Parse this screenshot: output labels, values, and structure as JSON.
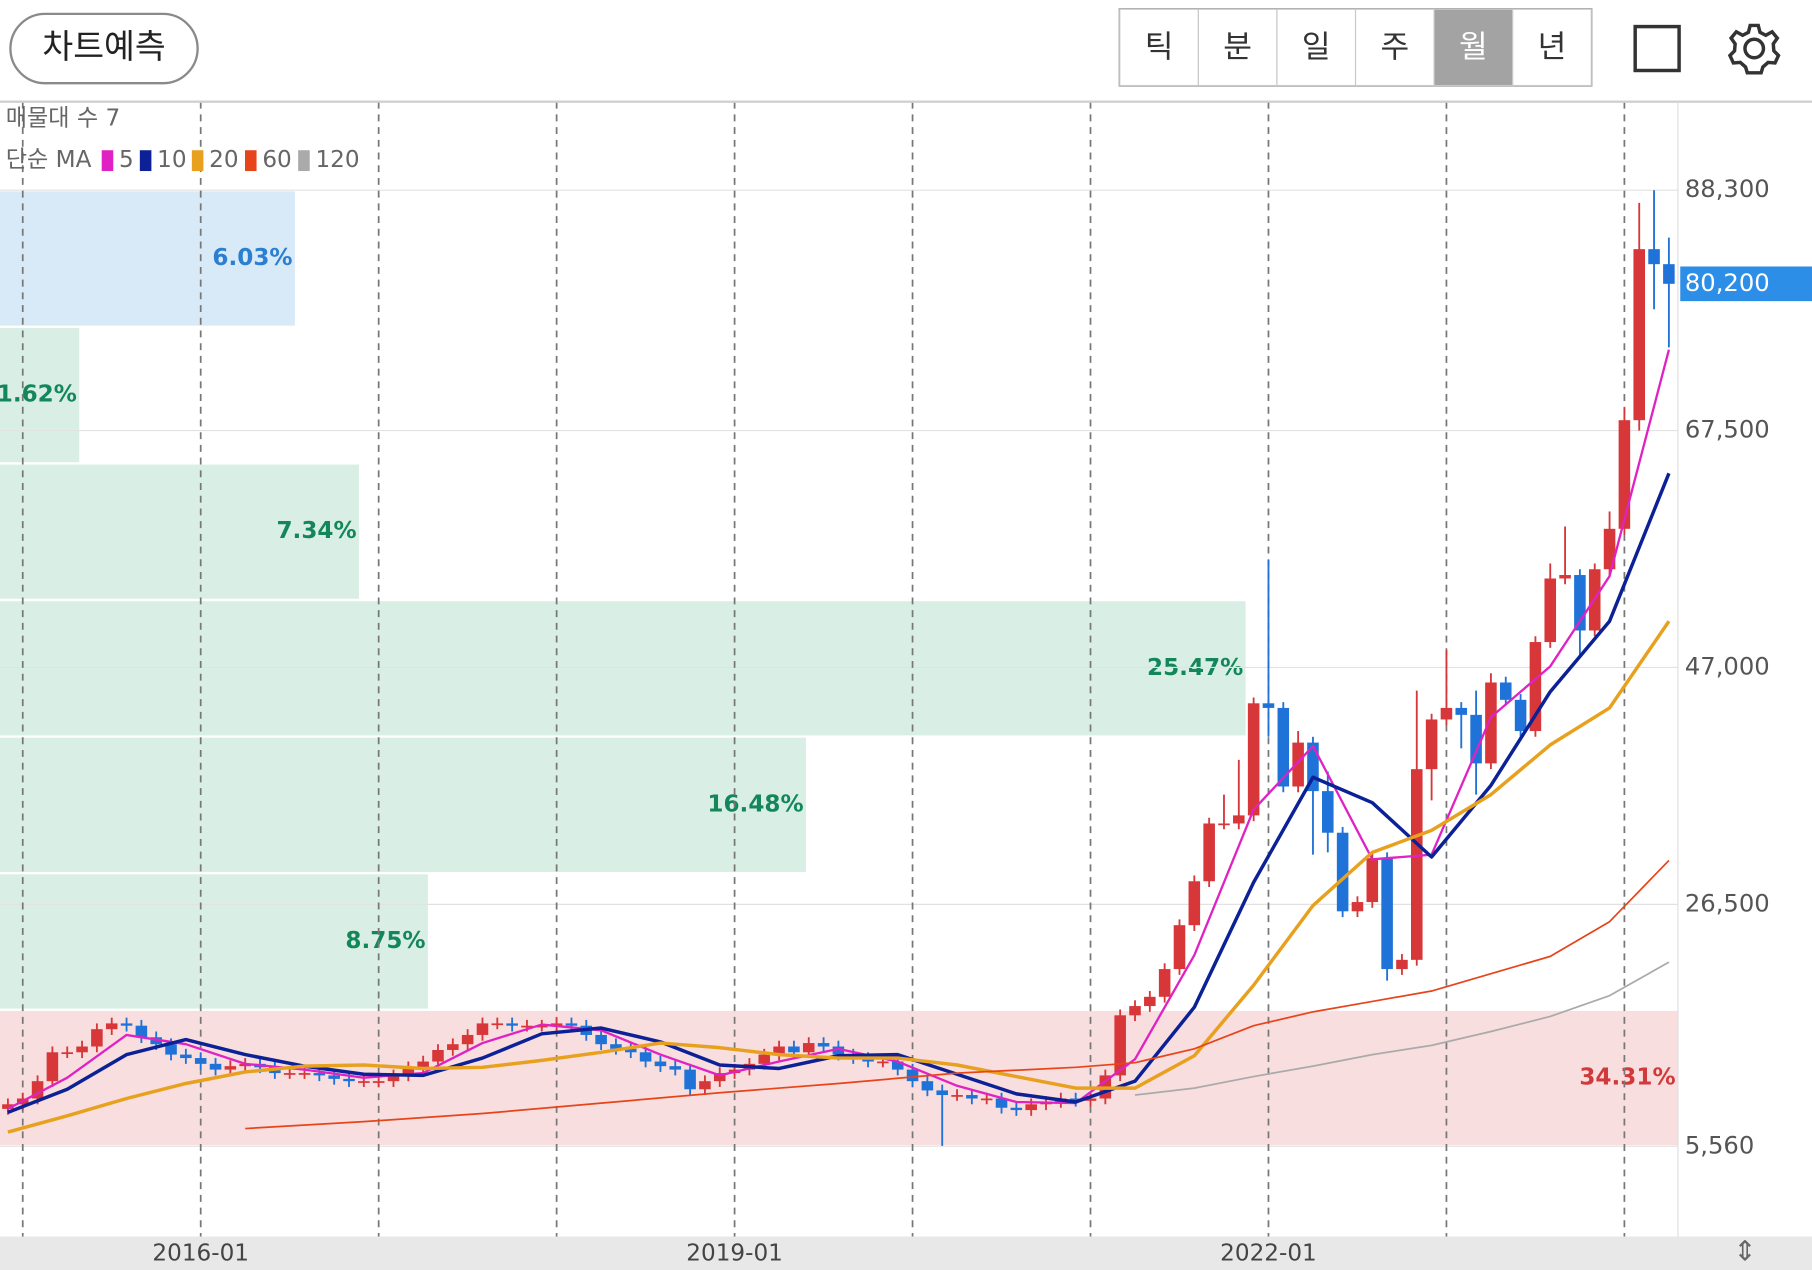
{
  "header": {
    "predict_button": "차트예측",
    "tabs": [
      "틱",
      "분",
      "일",
      "주",
      "월",
      "년"
    ],
    "selected_tab": "월"
  },
  "chart_data": {
    "type": "candlestick",
    "up_color": "#d8373a",
    "down_color": "#1f72d8",
    "xlim": [
      "2014-11",
      "2024-05"
    ],
    "xticks": [
      "2016-01",
      "2019-01",
      "2022-01"
    ],
    "xgrid": [
      "2015-01",
      "2016-01",
      "2017-01",
      "2018-01",
      "2019-01",
      "2020-01",
      "2021-01",
      "2022-01",
      "2023-01",
      "2024-01"
    ],
    "ylim": [
      0,
      96000
    ],
    "yticks": [
      {
        "value": 5560,
        "label": "5,560"
      },
      {
        "value": 26500,
        "label": "26,500"
      },
      {
        "value": 47000,
        "label": "47,000"
      },
      {
        "value": 67500,
        "label": "67,500"
      },
      {
        "value": 88300,
        "label": "88,300"
      }
    ],
    "grid": true,
    "current_price": {
      "value": 80200,
      "label": "80,200",
      "color": "#2d8ee8"
    },
    "x": [
      "2014-12",
      "2015-01",
      "2015-02",
      "2015-03",
      "2015-04",
      "2015-05",
      "2015-06",
      "2015-07",
      "2015-08",
      "2015-09",
      "2015-10",
      "2015-11",
      "2015-12",
      "2016-01",
      "2016-02",
      "2016-03",
      "2016-04",
      "2016-05",
      "2016-06",
      "2016-07",
      "2016-08",
      "2016-09",
      "2016-10",
      "2016-11",
      "2016-12",
      "2017-01",
      "2017-02",
      "2017-03",
      "2017-04",
      "2017-05",
      "2017-06",
      "2017-07",
      "2017-08",
      "2017-09",
      "2017-10",
      "2017-11",
      "2017-12",
      "2018-01",
      "2018-02",
      "2018-03",
      "2018-04",
      "2018-05",
      "2018-06",
      "2018-07",
      "2018-08",
      "2018-09",
      "2018-10",
      "2018-11",
      "2018-12",
      "2019-01",
      "2019-02",
      "2019-03",
      "2019-04",
      "2019-05",
      "2019-06",
      "2019-07",
      "2019-08",
      "2019-09",
      "2019-10",
      "2019-11",
      "2019-12",
      "2020-01",
      "2020-02",
      "2020-03",
      "2020-04",
      "2020-05",
      "2020-06",
      "2020-07",
      "2020-08",
      "2020-09",
      "2020-10",
      "2020-11",
      "2020-12",
      "2021-01",
      "2021-02",
      "2021-03",
      "2021-04",
      "2021-05",
      "2021-06",
      "2021-07",
      "2021-08",
      "2021-09",
      "2021-10",
      "2021-11",
      "2021-12",
      "2022-01",
      "2022-02",
      "2022-03",
      "2022-04",
      "2022-05",
      "2022-06",
      "2022-07",
      "2022-08",
      "2022-09",
      "2022-10",
      "2022-11",
      "2022-12",
      "2023-01",
      "2023-02",
      "2023-03",
      "2023-04",
      "2023-05",
      "2023-06",
      "2023-07",
      "2023-08",
      "2023-09",
      "2023-10",
      "2023-11",
      "2023-12",
      "2024-01",
      "2024-02",
      "2024-03",
      "2024-04"
    ],
    "open": [
      8800,
      9200,
      9700,
      11200,
      13700,
      13700,
      14200,
      15700,
      16200,
      16000,
      15000,
      14400,
      13500,
      13200,
      12700,
      12200,
      12500,
      12700,
      12400,
      11900,
      11900,
      11900,
      11700,
      11400,
      11200,
      11200,
      11200,
      11700,
      12400,
      12900,
      13900,
      14400,
      15200,
      16200,
      16200,
      16000,
      16000,
      16000,
      16200,
      16000,
      15200,
      14400,
      14000,
      13700,
      12900,
      12500,
      12200,
      10500,
      11200,
      11900,
      12200,
      12700,
      13500,
      14200,
      13700,
      14500,
      14200,
      13500,
      13200,
      12900,
      12900,
      12200,
      11200,
      10400,
      10000,
      10000,
      9700,
      9700,
      8900,
      8700,
      9200,
      9400,
      9700,
      9500,
      9700,
      11700,
      16900,
      17700,
      18500,
      20900,
      24700,
      28500,
      33500,
      33500,
      34200,
      43900,
      43500,
      36700,
      40500,
      36300,
      32700,
      25900,
      26700,
      30500,
      20900,
      21700,
      38200,
      42500,
      43500,
      42900,
      38700,
      45700,
      44200,
      41500,
      49200,
      54700,
      55000,
      50200,
      55500,
      59000,
      68400,
      83200,
      81900
    ],
    "high": [
      9700,
      10200,
      11700,
      14200,
      14200,
      14700,
      16200,
      16700,
      16700,
      16500,
      15500,
      14900,
      14000,
      13700,
      13200,
      13000,
      13200,
      13200,
      12900,
      12400,
      12400,
      12400,
      12200,
      11900,
      11700,
      11700,
      12200,
      12900,
      13400,
      14400,
      14900,
      15700,
      16700,
      16700,
      16700,
      16500,
      16500,
      16700,
      16700,
      16500,
      15700,
      14900,
      14500,
      14200,
      13400,
      13000,
      12700,
      11700,
      12400,
      12700,
      13200,
      14000,
      14700,
      14700,
      15000,
      15000,
      14700,
      14000,
      13700,
      13400,
      13400,
      12700,
      11700,
      10900,
      10500,
      10500,
      10200,
      10200,
      9400,
      9700,
      9900,
      10200,
      10200,
      10200,
      12200,
      17400,
      18200,
      19000,
      21400,
      25200,
      29000,
      34000,
      36000,
      39000,
      44400,
      56300,
      44000,
      41500,
      41000,
      38000,
      33200,
      27200,
      31000,
      31000,
      22200,
      45000,
      43000,
      48500,
      44000,
      45000,
      46500,
      46200,
      44700,
      49700,
      56000,
      59200,
      55500,
      56000,
      60500,
      69500,
      87200,
      88300,
      84200
    ],
    "low": [
      8300,
      8700,
      9200,
      10700,
      13200,
      13200,
      13700,
      15200,
      15500,
      14500,
      13900,
      13000,
      12700,
      12200,
      11700,
      11700,
      12000,
      11900,
      11400,
      11400,
      11400,
      11200,
      10900,
      10700,
      10700,
      10700,
      10700,
      11200,
      11900,
      12400,
      13400,
      13900,
      14700,
      15700,
      15500,
      15500,
      15500,
      15500,
      15500,
      14700,
      13900,
      13500,
      13200,
      12400,
      12000,
      11700,
      10000,
      10000,
      10700,
      11400,
      11700,
      12200,
      13000,
      13200,
      13200,
      13700,
      13000,
      12700,
      12400,
      12400,
      11700,
      10700,
      9900,
      5600,
      9500,
      9200,
      9200,
      8400,
      8200,
      8200,
      8700,
      8900,
      9000,
      9000,
      9200,
      11200,
      16400,
      17200,
      18000,
      20400,
      24200,
      28000,
      33000,
      33000,
      33700,
      41000,
      36200,
      36200,
      30800,
      31000,
      25400,
      25400,
      26200,
      19900,
      20400,
      21200,
      35500,
      42000,
      40000,
      36000,
      38200,
      43700,
      41000,
      41000,
      48700,
      54200,
      48000,
      49700,
      55000,
      58500,
      67500,
      78000,
      74700
    ],
    "close": [
      9200,
      9700,
      11200,
      13700,
      13700,
      14200,
      15700,
      16200,
      16000,
      15000,
      14400,
      13500,
      13200,
      12700,
      12200,
      12500,
      12700,
      12400,
      11900,
      11900,
      11900,
      11700,
      11400,
      11200,
      11200,
      11200,
      11700,
      12400,
      12900,
      13900,
      14400,
      15200,
      16200,
      16200,
      16000,
      16000,
      16000,
      16200,
      16000,
      15200,
      14400,
      14000,
      13700,
      12900,
      12500,
      12200,
      10500,
      11200,
      11900,
      12200,
      12700,
      13500,
      14200,
      13700,
      14500,
      14200,
      13500,
      13200,
      12900,
      12900,
      12200,
      11200,
      10400,
      10000,
      10000,
      9700,
      9700,
      8900,
      8700,
      9200,
      9400,
      9700,
      9500,
      9700,
      11700,
      16900,
      17700,
      18500,
      20900,
      24700,
      28500,
      33500,
      33500,
      34200,
      43900,
      43500,
      36700,
      40500,
      36300,
      32700,
      25900,
      26700,
      30500,
      20900,
      21700,
      38200,
      42500,
      43500,
      42900,
      38700,
      45700,
      44200,
      41500,
      49200,
      54700,
      55000,
      50200,
      55500,
      59000,
      68400,
      83200,
      81900,
      80200
    ],
    "ma_label": "단순 MA",
    "series": [
      {
        "name": "5",
        "color": "#e021c4",
        "width": 2,
        "x": [
          "2014-12",
          "2015-04",
          "2015-08",
          "2015-12",
          "2016-04",
          "2016-08",
          "2016-12",
          "2017-04",
          "2017-08",
          "2017-12",
          "2018-04",
          "2018-08",
          "2018-12",
          "2019-04",
          "2019-08",
          "2019-12",
          "2020-04",
          "2020-08",
          "2020-12",
          "2021-04",
          "2021-08",
          "2021-12",
          "2022-04",
          "2022-08",
          "2022-12",
          "2023-04",
          "2023-08",
          "2023-12",
          "2024-04"
        ],
        "values": [
          8800,
          11500,
          15200,
          14400,
          12700,
          12200,
          11500,
          11900,
          14500,
          16100,
          15600,
          13500,
          11700,
          12900,
          14000,
          12900,
          10800,
          9400,
          9300,
          13100,
          22100,
          34700,
          40200,
          30400,
          30800,
          42700,
          47100,
          54900,
          74500
        ]
      },
      {
        "name": "10",
        "color": "#0c2196",
        "width": 3,
        "x": [
          "2014-12",
          "2015-04",
          "2015-08",
          "2015-12",
          "2016-04",
          "2016-08",
          "2016-12",
          "2017-04",
          "2017-08",
          "2017-12",
          "2018-04",
          "2018-08",
          "2018-12",
          "2019-04",
          "2019-08",
          "2019-12",
          "2020-04",
          "2020-08",
          "2020-12",
          "2021-04",
          "2021-08",
          "2021-12",
          "2022-04",
          "2022-08",
          "2022-12",
          "2023-04",
          "2023-08",
          "2023-12",
          "2024-04"
        ],
        "values": [
          8500,
          10500,
          13500,
          14800,
          13500,
          12500,
          11800,
          11700,
          13200,
          15300,
          15800,
          14600,
          12600,
          12300,
          13400,
          13500,
          11800,
          10100,
          9400,
          11200,
          17600,
          28400,
          37500,
          35300,
          30600,
          36800,
          44900,
          51000,
          63800
        ]
      },
      {
        "name": "20",
        "color": "#e8a11e",
        "width": 3,
        "x": [
          "2014-12",
          "2015-04",
          "2015-08",
          "2015-12",
          "2016-04",
          "2016-08",
          "2016-12",
          "2017-04",
          "2017-08",
          "2017-12",
          "2018-04",
          "2018-08",
          "2018-12",
          "2019-04",
          "2019-08",
          "2019-12",
          "2020-04",
          "2020-08",
          "2020-12",
          "2021-04",
          "2021-08",
          "2021-12",
          "2022-04",
          "2022-08",
          "2022-12",
          "2023-04",
          "2023-08",
          "2023-12",
          "2024-04"
        ],
        "values": [
          6800,
          8200,
          9700,
          11000,
          12000,
          12500,
          12600,
          12300,
          12400,
          13000,
          13700,
          14500,
          14100,
          13500,
          13200,
          13200,
          12600,
          11600,
          10600,
          10600,
          13400,
          19500,
          26400,
          31000,
          32900,
          36000,
          40300,
          43500,
          51000
        ]
      },
      {
        "name": "60",
        "color": "#e8441a",
        "width": 1.5,
        "x": [
          "2016-04",
          "2016-12",
          "2017-08",
          "2018-04",
          "2018-12",
          "2019-08",
          "2020-04",
          "2020-12",
          "2021-04",
          "2021-08",
          "2021-12",
          "2022-04",
          "2022-08",
          "2022-12",
          "2023-04",
          "2023-08",
          "2023-12",
          "2024-04"
        ],
        "values": [
          7100,
          7700,
          8400,
          9300,
          10200,
          11000,
          11900,
          12400,
          12800,
          14000,
          16000,
          17200,
          18100,
          19000,
          20500,
          22000,
          25000,
          30300
        ]
      },
      {
        "name": "120",
        "color": "#aaaaaa",
        "width": 1.5,
        "x": [
          "2021-04",
          "2021-08",
          "2021-12",
          "2022-04",
          "2022-08",
          "2022-12",
          "2023-04",
          "2023-08",
          "2023-12",
          "2024-04"
        ],
        "values": [
          10000,
          10600,
          11600,
          12500,
          13500,
          14300,
          15500,
          16800,
          18600,
          21500
        ]
      }
    ],
    "volume_profile": {
      "title": "매물대 수 7",
      "bands": [
        {
          "low": 76480,
          "high": 88300,
          "percent": 6.03,
          "value_label": "6.03%",
          "color": "#d8e9f8",
          "label_color": "#2a7fd0"
        },
        {
          "low": 64660,
          "high": 76480,
          "percent": 1.62,
          "value_label": "1.62%",
          "color": "#d9efe6",
          "label_color": "#13875a"
        },
        {
          "low": 52840,
          "high": 64660,
          "percent": 7.34,
          "value_label": "7.34%",
          "color": "#d9efe6",
          "label_color": "#13875a"
        },
        {
          "low": 41020,
          "high": 52840,
          "percent": 25.47,
          "value_label": "25.47%",
          "color": "#d9efe6",
          "label_color": "#13875a"
        },
        {
          "low": 29200,
          "high": 41020,
          "percent": 16.48,
          "value_label": "16.48%",
          "color": "#d9efe6",
          "label_color": "#13875a"
        },
        {
          "low": 17380,
          "high": 29200,
          "percent": 8.75,
          "value_label": "8.75%",
          "color": "#d9efe6",
          "label_color": "#13875a"
        },
        {
          "low": 5560,
          "high": 17380,
          "percent": 34.31,
          "value_label": "34.31%",
          "color": "#f8dede",
          "label_color": "#d03a3a"
        }
      ]
    }
  }
}
